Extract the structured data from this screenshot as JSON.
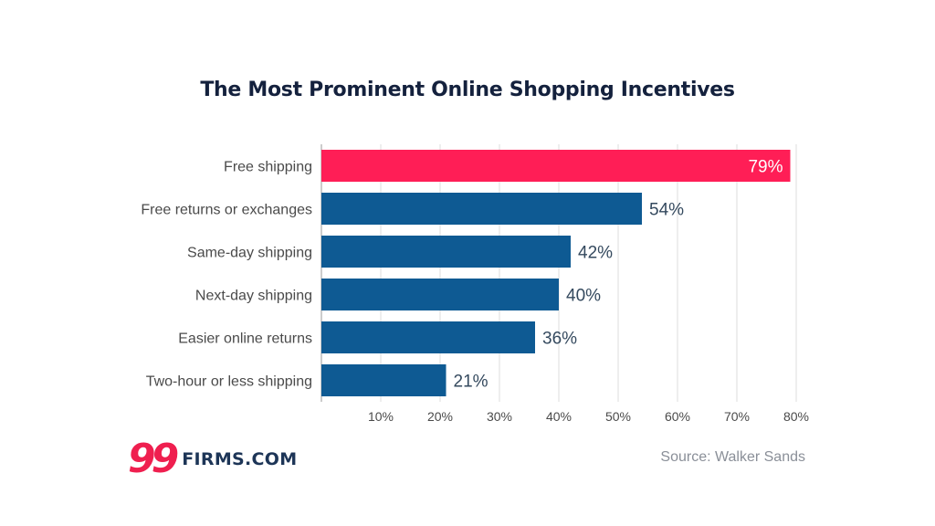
{
  "chart_data": {
    "type": "bar",
    "orientation": "horizontal",
    "title": "The Most Prominent Online Shopping Incentives",
    "categories": [
      "Free shipping",
      "Free returns or exchanges",
      "Same-day shipping",
      "Next-day shipping",
      "Easier online returns",
      "Two-hour or less shipping"
    ],
    "values": [
      79,
      54,
      42,
      40,
      36,
      21
    ],
    "value_labels": [
      "79%",
      "54%",
      "42%",
      "40%",
      "36%",
      "21%"
    ],
    "xlim": [
      0,
      80
    ],
    "ticks": [
      10,
      20,
      30,
      40,
      50,
      60,
      70,
      80
    ],
    "tick_labels": [
      "10%",
      "20%",
      "30%",
      "40%",
      "50%",
      "60%",
      "70%",
      "80%"
    ],
    "grid": true,
    "colors": {
      "highlight": "#ff1e56",
      "default": "#0e5a93"
    }
  },
  "footer": {
    "logo_mark": "99",
    "logo_text": "FIRMS.COM",
    "source": "Source: Walker Sands"
  }
}
